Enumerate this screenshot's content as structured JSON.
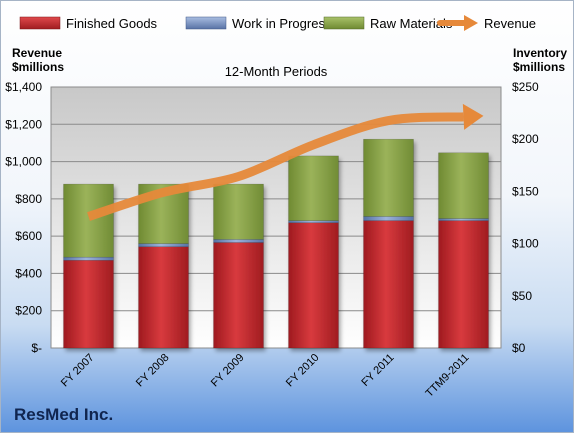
{
  "chart_data": {
    "type": "bar",
    "subtitle": "12-Month Periods",
    "company": "ResMed Inc.",
    "left_axis": {
      "label_line1": "Revenue",
      "label_line2": "$millions",
      "ticks": [
        "$-",
        "$200",
        "$400",
        "$600",
        "$800",
        "$1,000",
        "$1,200",
        "$1,400"
      ],
      "min": 0,
      "max": 1400
    },
    "right_axis": {
      "label_line1": "Inventory",
      "label_line2": "$millions",
      "ticks": [
        "$0",
        "$50",
        "$100",
        "$150",
        "$200",
        "$250"
      ],
      "min": 0,
      "max": 250
    },
    "categories": [
      "FY 2007",
      "FY 2008",
      "FY 2009",
      "FY 2010",
      "FY 2011",
      "TTM9-2011"
    ],
    "series": [
      {
        "name": "Finished Goods",
        "kind": "bar",
        "color": "#c0232a",
        "values": [
          84,
          97,
          101,
          120,
          122,
          122
        ]
      },
      {
        "name": "Work in Progress",
        "kind": "bar",
        "color": "#6f8fc2",
        "values": [
          3,
          3,
          3,
          2,
          4,
          2
        ]
      },
      {
        "name": "Raw Materials",
        "kind": "bar",
        "color": "#8ba34a",
        "values": [
          70,
          57,
          53,
          62,
          74,
          63
        ]
      },
      {
        "name": "Revenue",
        "kind": "line",
        "color": "#e6893a",
        "values": [
          705,
          835,
          920,
          1090,
          1220,
          1240
        ]
      }
    ]
  }
}
